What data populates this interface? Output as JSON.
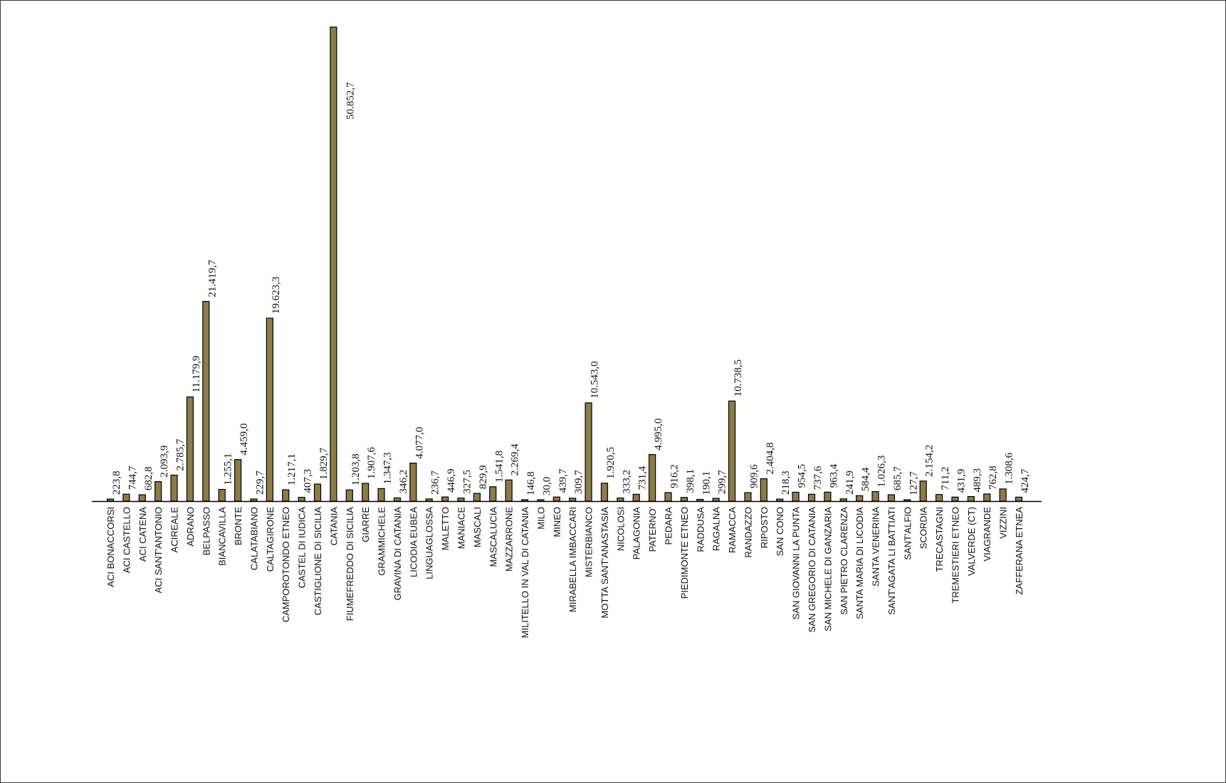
{
  "chart_data": {
    "type": "bar",
    "title": "",
    "xlabel": "",
    "ylabel": "",
    "ylim": [
      0,
      50852.7
    ],
    "grid": false,
    "legend": "none",
    "bar_color": "#8b7d47",
    "bar_stroke": "#000000",
    "categories": [
      "ACI BONACCORSI",
      "ACI CASTELLO",
      "ACI CATENA",
      "ACI SANT'ANTONIO",
      "ACIREALE",
      "ADRANO",
      "BELPASSO",
      "BIANCAVILLA",
      "BRONTE",
      "CALATABIANO",
      "CALTAGIRONE",
      "CAMPOROTONDO ETNEO",
      "CASTEL DI IUDICA",
      "CASTIGLIONE DI SICILIA",
      "CATANIA",
      "FIUMEFREDDO DI SICILIA",
      "GIARRE",
      "GRAMMICHELE",
      "GRAVINA DI CATANIA",
      "LICODIA EUBEA",
      "LINGUAGLOSSA",
      "MALETTO",
      "MANIACE",
      "MASCALI",
      "MASCALUCIA",
      "MAZZARRONE",
      "MILITELLO IN VAL DI CATANIA",
      "MILO",
      "MINEO",
      "MIRABELLA IMBACCARI",
      "MISTERBIANCO",
      "MOTTA SANT'ANASTASIA",
      "NICOLOSI",
      "PALAGONIA",
      "PATERNO'",
      "PEDARA",
      "PIEDIMONTE ETNEO",
      "RADDUSA",
      "RAGALNA",
      "RAMACCA",
      "RANDAZZO",
      "RIPOSTO",
      "SAN CONO",
      "SAN GIOVANNI LA PUNTA",
      "SAN GREGORIO DI CATANIA",
      "SAN MICHELE DI GANZARIA",
      "SAN PIETRO CLARENZA",
      "SANTA MARIA DI LICODIA",
      "SANTA VENERINA",
      "SANT'AGATA LI BATTIATI",
      "SANT'ALFIO",
      "SCORDIA",
      "TRECASTAGNI",
      "TREMESTIERI ETNEO",
      "VALVERDE (CT)",
      "VIAGRANDE",
      "VIZZINI",
      "ZAFFERANA ETNEA"
    ],
    "values": [
      223.8,
      744.7,
      682.8,
      2093.9,
      2785.7,
      11179.9,
      21419.7,
      1255.1,
      4459.0,
      229.7,
      19623.3,
      1217.1,
      407.3,
      1829.7,
      50852.7,
      1203.8,
      1907.6,
      1347.3,
      346.2,
      4077.0,
      236.7,
      446.9,
      327.5,
      829.9,
      1541.8,
      2269.4,
      146.8,
      30.0,
      439.7,
      309.7,
      10543.0,
      1920.5,
      333.2,
      731.4,
      4995.0,
      916.2,
      398.1,
      190.1,
      299.7,
      10738.5,
      909.6,
      2404.8,
      218.3,
      954.5,
      737.6,
      963.4,
      241.9,
      584.4,
      1026.3,
      685.7,
      127.7,
      2154.2,
      711.2,
      431.9,
      489.3,
      762.8,
      1308.6,
      424.7
    ],
    "value_labels": [
      "223,8",
      "744,7",
      "682,8",
      "2.093,9",
      "2.785,7",
      "11.179,9",
      "21.419,7",
      "1.255,1",
      "4.459,0",
      "229,7",
      "19.623,3",
      "1.217,1",
      "407,3",
      "1.829,7",
      "50.852,7",
      "1.203,8",
      "1.907,6",
      "1.347,3",
      "346,2",
      "4.077,0",
      "236,7",
      "446,9",
      "327,5",
      "829,9",
      "1.541,8",
      "2.269,4",
      "146,8",
      "30,0",
      "439,7",
      "309,7",
      "10.543,0",
      "1.920,5",
      "333,2",
      "731,4",
      "4.995,0",
      "916,2",
      "398,1",
      "190,1",
      "299,7",
      "10.738,5",
      "909,6",
      "2.404,8",
      "218,3",
      "954,5",
      "737,6",
      "963,4",
      "241,9",
      "584,4",
      "1.026,3",
      "685,7",
      "127,7",
      "2.154,2",
      "711,2",
      "431,9",
      "489,3",
      "762,8",
      "1.308,6",
      "424,7"
    ]
  }
}
